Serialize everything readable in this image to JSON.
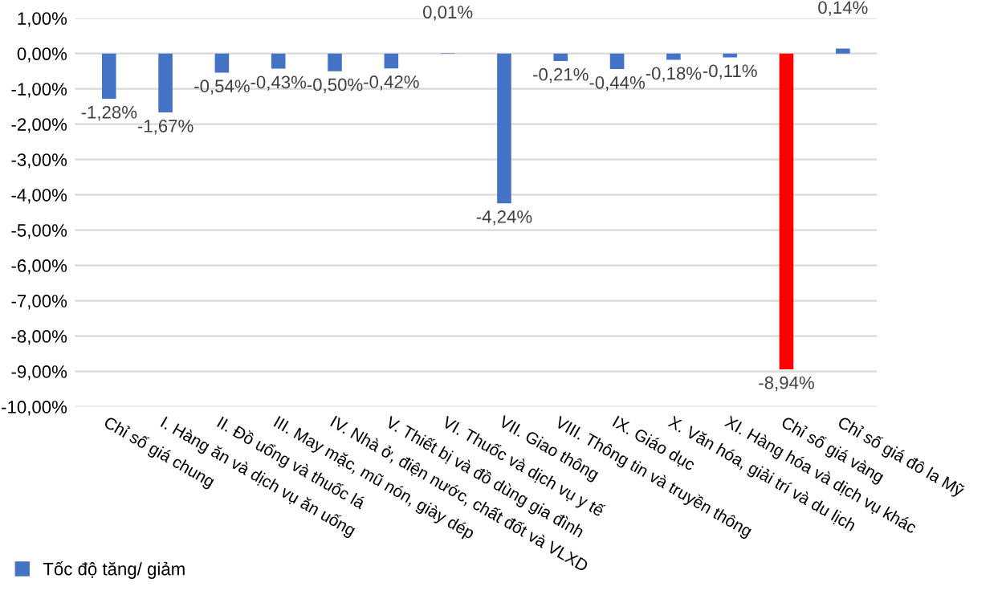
{
  "chart_data": {
    "type": "bar",
    "categories": [
      "Chỉ số giá chung",
      "I. Hàng ăn và dịch vụ ăn uống",
      "II. Đồ uống và thuốc lá",
      "III. May mặc, mũ nón, giày dép",
      "IV. Nhà ở, điện nước, chất đốt và VLXD",
      "V. Thiết bị và đồ dùng gia đình",
      "VI. Thuốc và dịch vụ y tế",
      "VII. Giao thông",
      "VIII. Thông tin và truyền thông",
      "IX. Giáo dục",
      "X. Văn hóa, giải trí và du lịch",
      "XI. Hàng hóa và dịch vụ khác",
      "Chỉ số giá vàng",
      "Chỉ số giá đô la Mỹ"
    ],
    "series": [
      {
        "name": "Tốc độ tăng/ giảm",
        "color": "#4472c4",
        "colors": [
          "#4472c4",
          "#4472c4",
          "#4472c4",
          "#4472c4",
          "#4472c4",
          "#4472c4",
          "#4472c4",
          "#4472c4",
          "#4472c4",
          "#4472c4",
          "#4472c4",
          "#4472c4",
          "#ff0000",
          "#4472c4"
        ],
        "values": [
          -1.28,
          -1.67,
          -0.54,
          -0.43,
          -0.5,
          -0.42,
          0.01,
          -4.24,
          -0.21,
          -0.44,
          -0.18,
          -0.11,
          -8.94,
          0.14
        ],
        "value_labels": [
          "-1,28%",
          "-1,67%",
          "-0,54%",
          "-0,43%",
          "-0,50%",
          "-0,42%",
          "0,01%",
          "-4,24%",
          "-0,21%",
          "-0,44%",
          "-0,18%",
          "-0,11%",
          "-8,94%",
          "0,14%"
        ]
      }
    ],
    "ylim": [
      -10,
      1
    ],
    "yticks": [
      {
        "value": 1,
        "label": "1,00%"
      },
      {
        "value": 0,
        "label": "0,00%"
      },
      {
        "value": -1,
        "label": "-1,00%"
      },
      {
        "value": -2,
        "label": "-2,00%"
      },
      {
        "value": -3,
        "label": "-3,00%"
      },
      {
        "value": -4,
        "label": "-4,00%"
      },
      {
        "value": -5,
        "label": "-5,00%"
      },
      {
        "value": -6,
        "label": "-6,00%"
      },
      {
        "value": -7,
        "label": "-7,00%"
      },
      {
        "value": -8,
        "label": "-8,00%"
      },
      {
        "value": -9,
        "label": "-9,00%"
      },
      {
        "value": -10,
        "label": "-10,00%"
      }
    ],
    "grid": "y",
    "legend": "bottom"
  }
}
